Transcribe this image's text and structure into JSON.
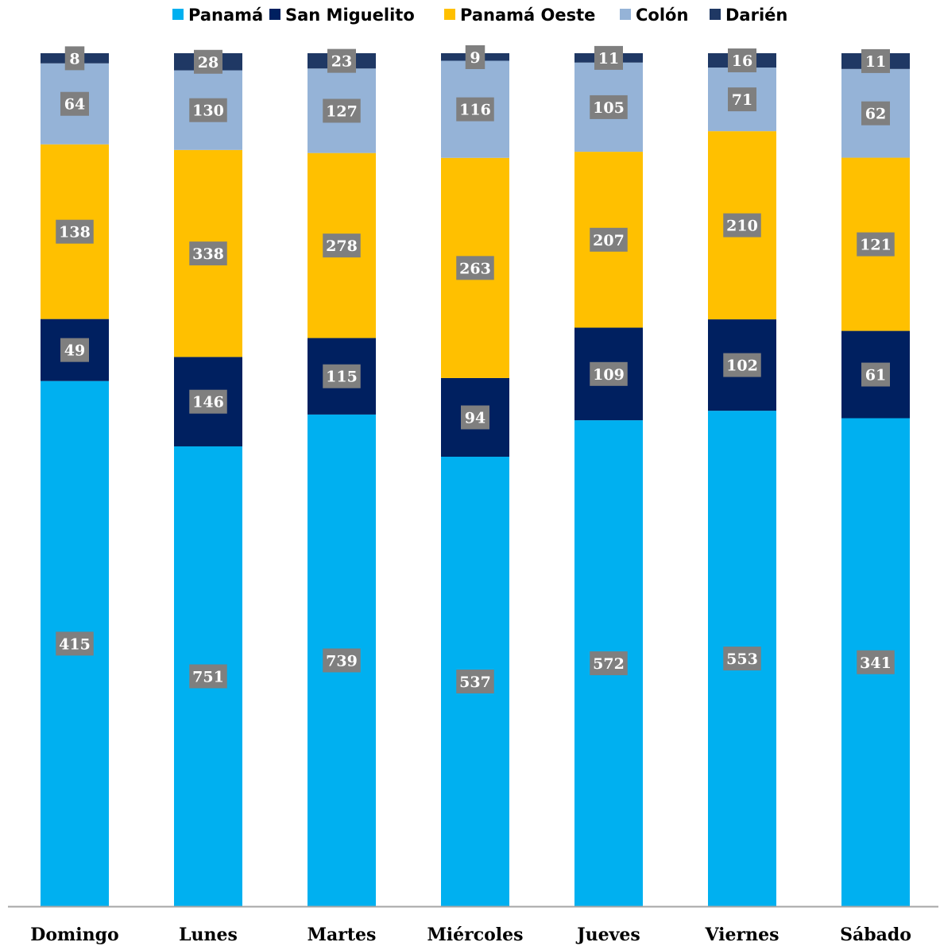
{
  "chart_data": {
    "type": "bar",
    "stacked": true,
    "orientation": "vertical",
    "normalized_to": 100,
    "categories": [
      "Domingo",
      "Lunes",
      "Martes",
      "Miércoles",
      "Jueves",
      "Viernes",
      "Sábado"
    ],
    "series": [
      {
        "name": "Panamá",
        "color": "#00b0f0",
        "values": [
          415,
          751,
          739,
          537,
          572,
          553,
          341
        ]
      },
      {
        "name": "San Miguelito",
        "color": "#002060",
        "values": [
          49,
          146,
          115,
          94,
          109,
          102,
          61
        ]
      },
      {
        "name": "Panamá Oeste",
        "color": "#ffc000",
        "values": [
          138,
          338,
          278,
          263,
          207,
          210,
          121
        ]
      },
      {
        "name": "Colón",
        "color": "#95b3d7",
        "values": [
          64,
          130,
          127,
          116,
          105,
          71,
          62
        ]
      },
      {
        "name": "Darién",
        "color": "#1f3864",
        "values": [
          8,
          28,
          23,
          9,
          11,
          16,
          11
        ]
      }
    ],
    "title": "",
    "xlabel": "",
    "ylabel": "",
    "legend": "top",
    "grid": false,
    "data_label_background": "#7f7f7f",
    "axis_color": "#a6a6a6"
  }
}
